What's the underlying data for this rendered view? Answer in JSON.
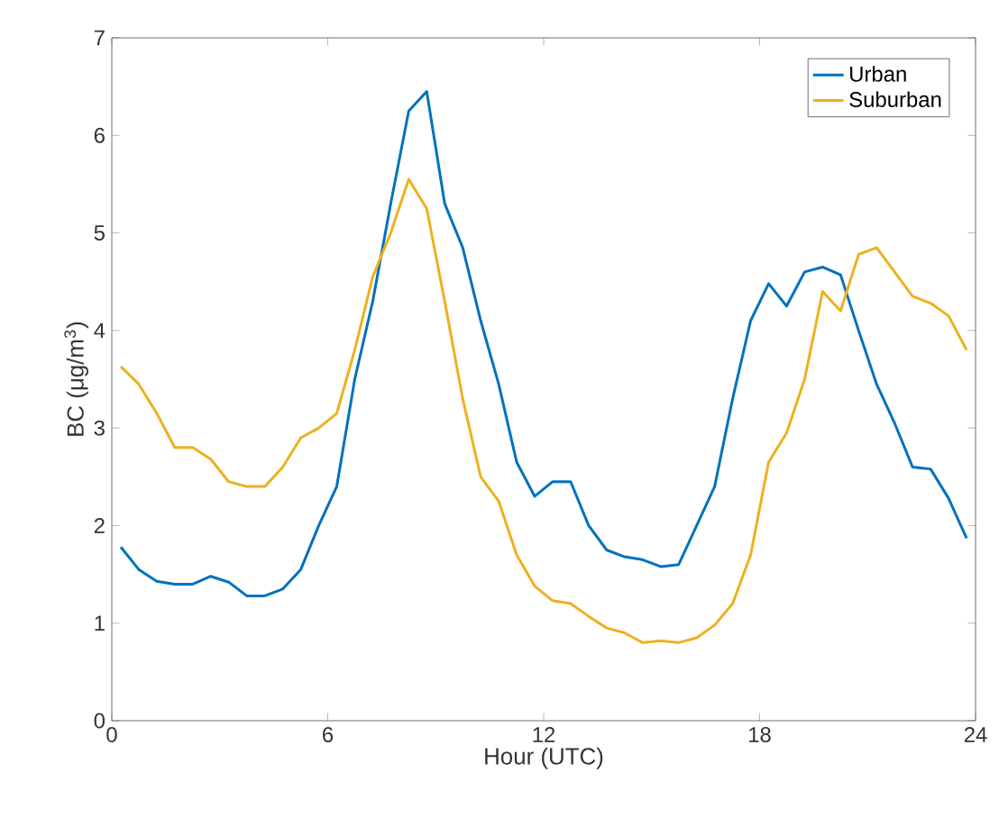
{
  "chart_data": {
    "type": "line",
    "xlabel": "Hour (UTC)",
    "ylabel": "BC (μg/m$^{3}$)",
    "x": [
      0.25,
      0.75,
      1.25,
      1.75,
      2.25,
      2.75,
      3.25,
      3.75,
      4.25,
      4.75,
      5.25,
      5.75,
      6.25,
      6.75,
      7.25,
      7.75,
      8.25,
      8.75,
      9.25,
      9.75,
      10.25,
      10.75,
      11.25,
      11.75,
      12.25,
      12.75,
      13.25,
      13.75,
      14.25,
      14.75,
      15.25,
      15.75,
      16.25,
      16.75,
      17.25,
      17.75,
      18.25,
      18.75,
      19.25,
      19.75,
      20.25,
      20.75,
      21.25,
      21.75,
      22.25,
      22.75,
      23.25,
      23.75
    ],
    "series": [
      {
        "name": "Urban",
        "color": "#0072bd",
        "values": [
          1.78,
          1.55,
          1.43,
          1.4,
          1.4,
          1.48,
          1.42,
          1.28,
          1.28,
          1.35,
          1.55,
          2.0,
          2.4,
          3.5,
          4.3,
          5.3,
          6.25,
          6.45,
          5.3,
          4.85,
          4.1,
          3.45,
          2.65,
          2.3,
          2.45,
          2.45,
          2.0,
          1.75,
          1.68,
          1.65,
          1.58,
          1.6,
          2.0,
          2.4,
          3.3,
          4.1,
          4.48,
          4.25,
          4.6,
          4.65,
          4.57,
          4.0,
          3.45,
          3.05,
          2.6,
          2.58,
          2.28,
          1.87
        ]
      },
      {
        "name": "Suburban",
        "color": "#edb120",
        "values": [
          3.63,
          3.45,
          3.15,
          2.8,
          2.8,
          2.68,
          2.45,
          2.4,
          2.4,
          2.6,
          2.9,
          3.0,
          3.15,
          3.8,
          4.55,
          5.0,
          5.55,
          5.25,
          4.3,
          3.3,
          2.5,
          2.25,
          1.7,
          1.38,
          1.23,
          1.2,
          1.07,
          0.95,
          0.9,
          0.8,
          0.82,
          0.8,
          0.85,
          0.98,
          1.2,
          1.7,
          2.65,
          2.95,
          3.5,
          4.4,
          4.2,
          4.78,
          4.85,
          4.6,
          4.35,
          4.28,
          4.15,
          3.8
        ]
      }
    ],
    "xlim": [
      0,
      24
    ],
    "ylim": [
      0,
      7
    ],
    "xticks": [
      0,
      6,
      12,
      18,
      24
    ],
    "yticks": [
      0,
      1,
      2,
      3,
      4,
      5,
      6,
      7
    ],
    "legend": "top right",
    "grid": false,
    "marker": "none",
    "line_style": "solid"
  }
}
